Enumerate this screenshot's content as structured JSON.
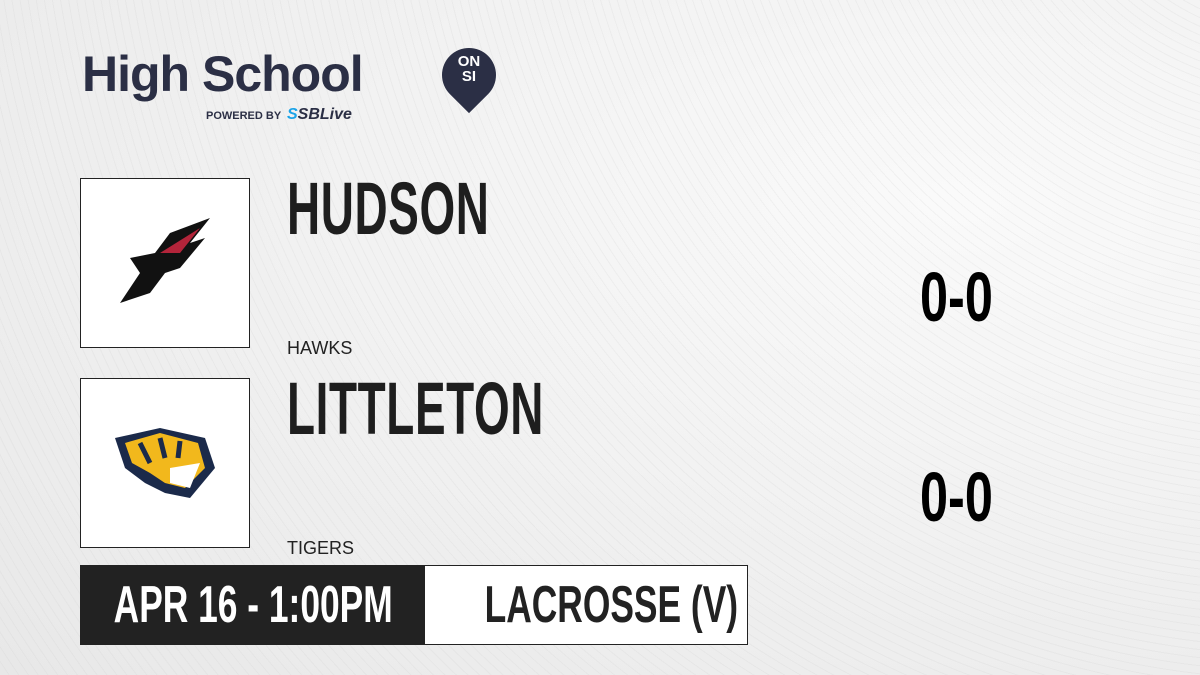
{
  "brand": {
    "title": "High School",
    "badge_top": "ON",
    "badge_bottom": "SI",
    "powered_by": "POWERED BY",
    "partner_prefix": "S",
    "partner": "SBLive"
  },
  "teams": [
    {
      "name": "HUDSON",
      "mascot": "HAWKS",
      "record": "0-0",
      "logo": "hawk-logo",
      "colors": [
        "#111111",
        "#b3243a"
      ]
    },
    {
      "name": "LITTLETON",
      "mascot": "TIGERS",
      "record": "0-0",
      "logo": "tiger-logo",
      "colors": [
        "#1b2a4a",
        "#f2b81c"
      ]
    }
  ],
  "game": {
    "datetime": "APR 16 - 1:00PM",
    "sport": "LACROSSE (V)"
  }
}
